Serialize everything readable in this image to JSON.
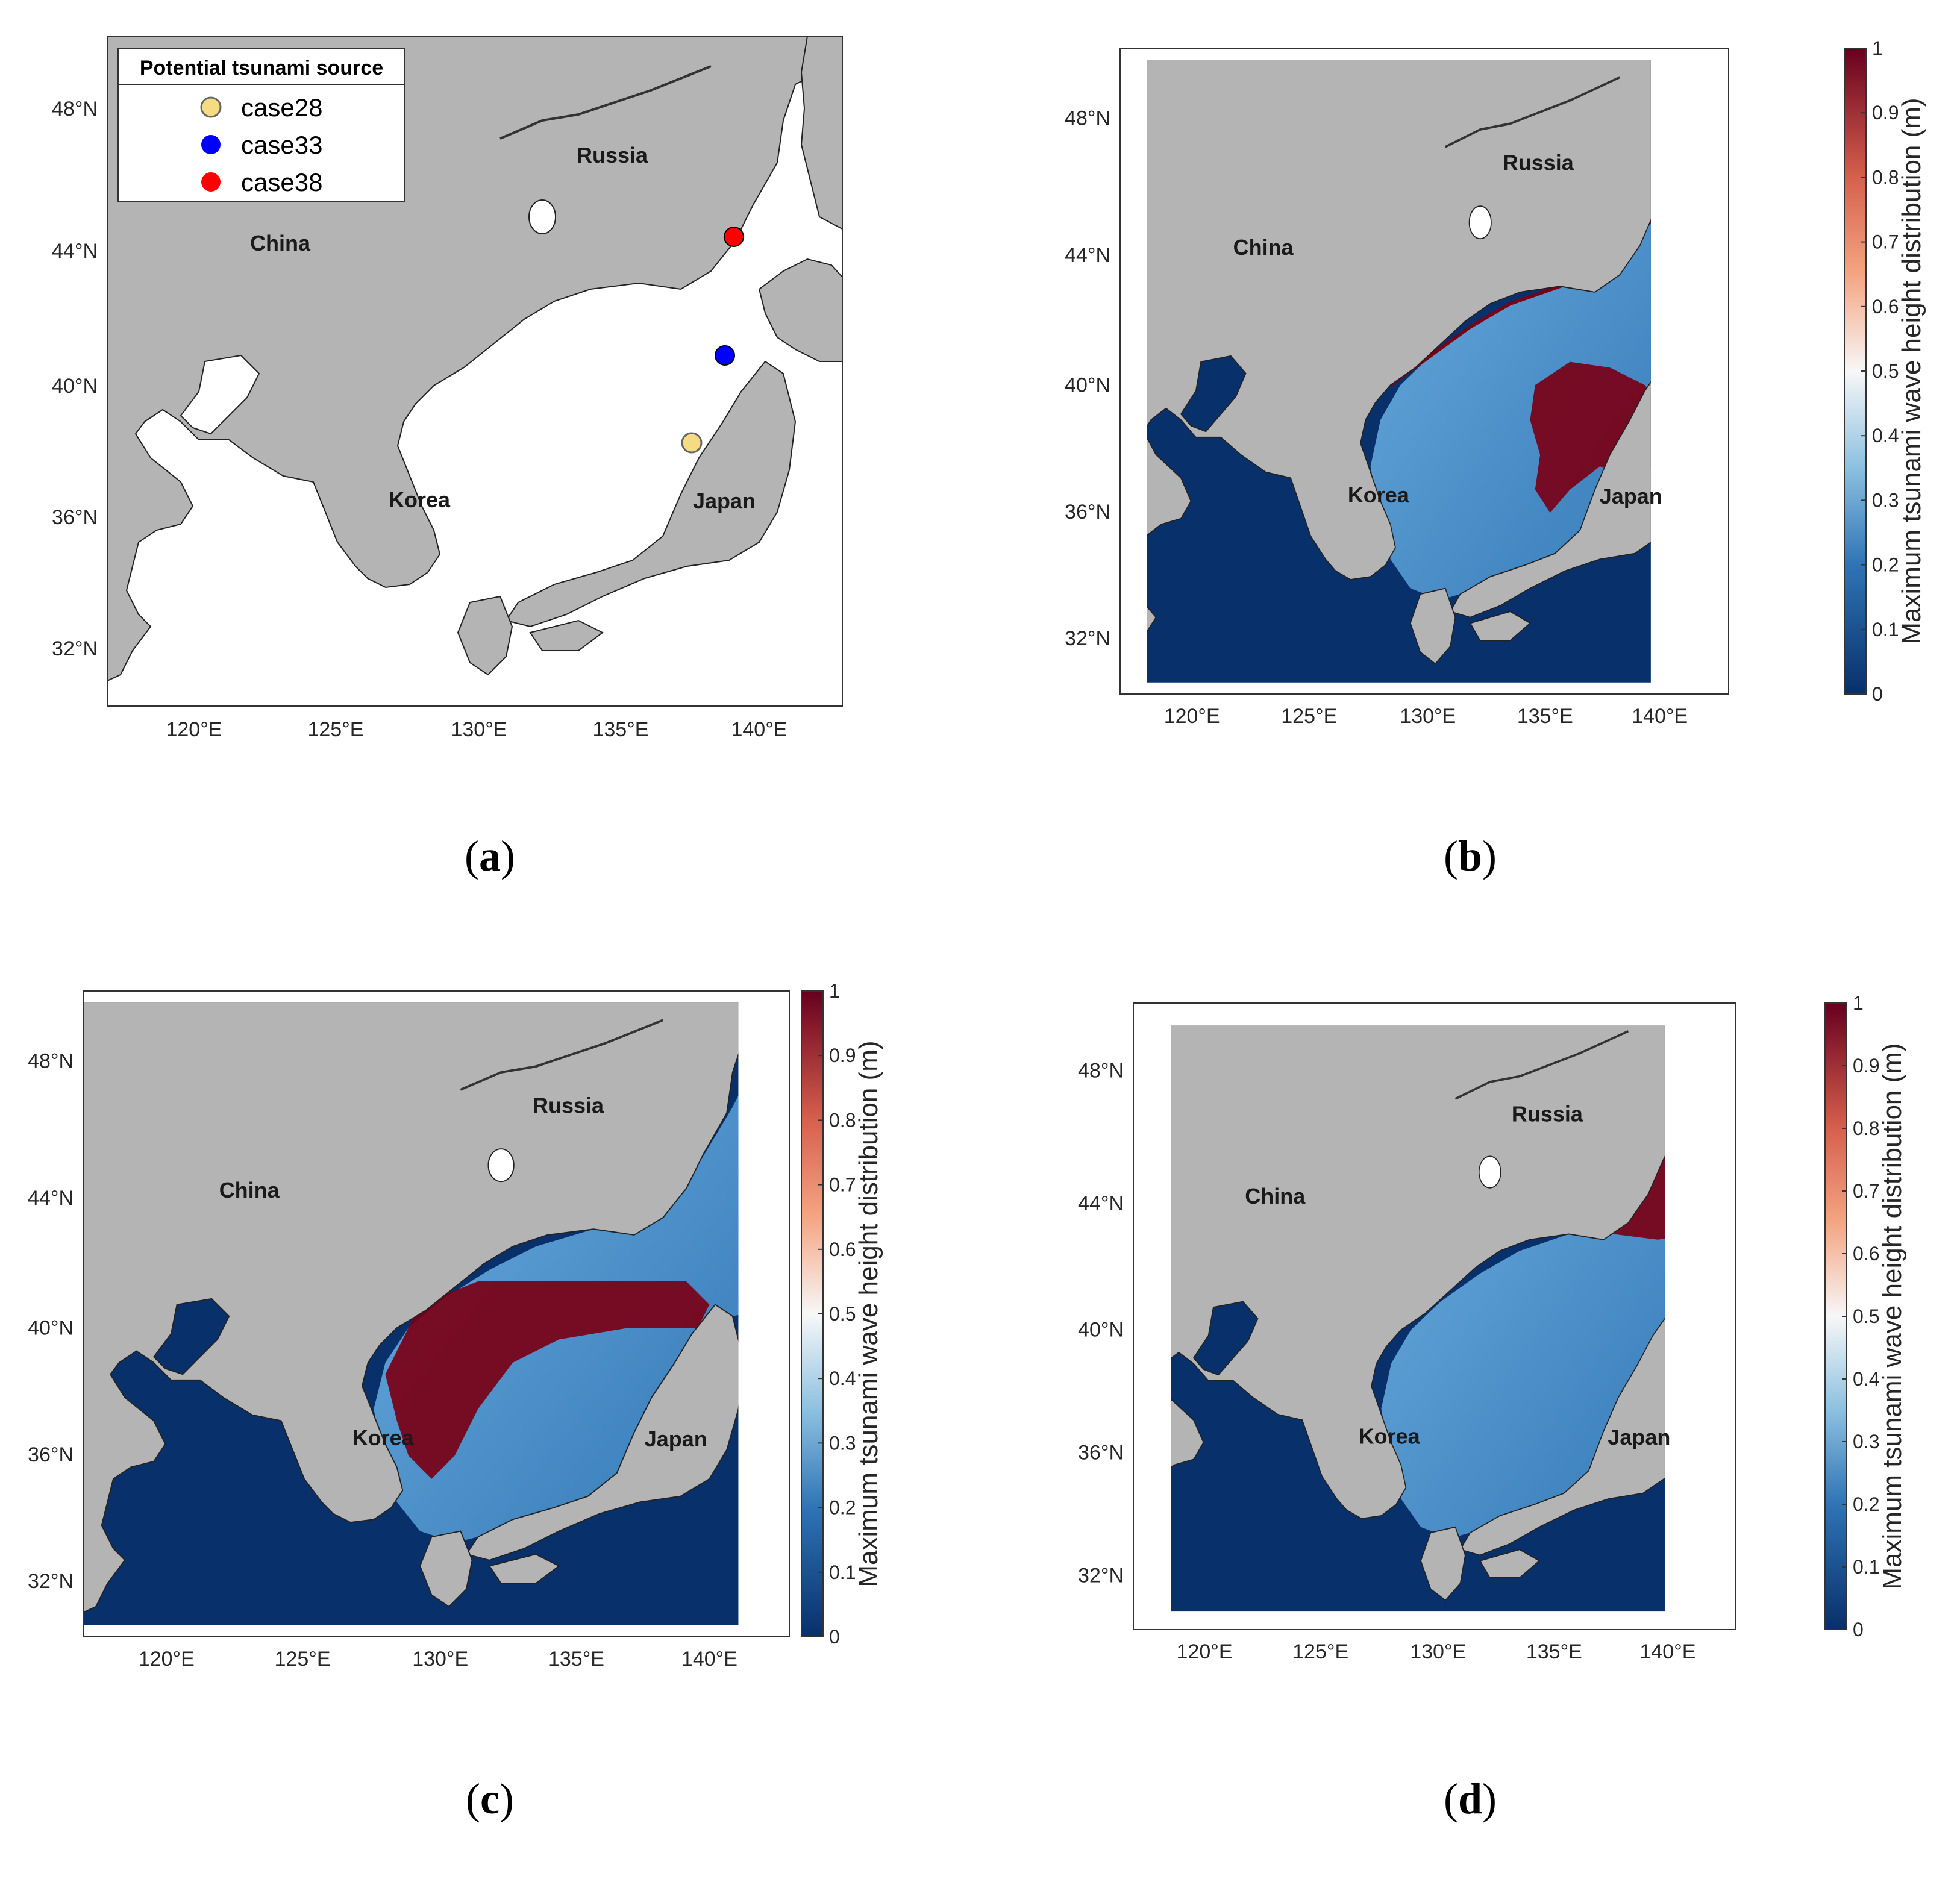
{
  "axes": {
    "lat_labels": [
      "48°N",
      "44°N",
      "40°N",
      "36°N",
      "32°N"
    ],
    "lon_labels": [
      "120°E",
      "125°E",
      "130°E",
      "135°E",
      "140°E"
    ]
  },
  "regions": {
    "china": "China",
    "russia": "Russia",
    "korea": "Korea",
    "japan": "Japan"
  },
  "colors": {
    "land": "#b4b4b4",
    "sea_a": "#ffffff",
    "sea_low": "#08306b",
    "wave_mid": "#4a90d0",
    "wave_high": "#7a0016",
    "case28": "#f5dc82",
    "case33": "#0000ff",
    "case38": "#ff0000"
  },
  "legend": {
    "title": "Potential tsunami source",
    "items": [
      {
        "label": "case28",
        "color": "#f5dc82"
      },
      {
        "label": "case33",
        "color": "#0000ff"
      },
      {
        "label": "case38",
        "color": "#ff0000"
      }
    ]
  },
  "colorbar": {
    "label": "Maximum tsunami wave height distribution (m)",
    "ticks": [
      "0",
      "0.1",
      "0.2",
      "0.3",
      "0.4",
      "0.5",
      "0.6",
      "0.7",
      "0.8",
      "0.9",
      "1"
    ],
    "range": [
      0,
      1
    ],
    "colormap": "blue-white-red"
  },
  "captions": {
    "a": "a",
    "b": "b",
    "c": "c",
    "d": "d"
  }
}
